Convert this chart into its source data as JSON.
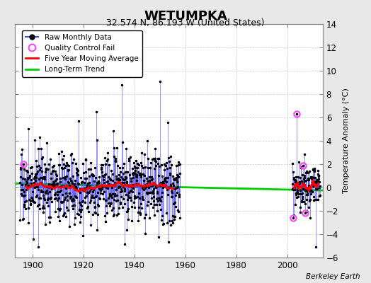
{
  "title": "WETUMPKA",
  "subtitle": "32.574 N, 86.193 W (United States)",
  "ylabel_right": "Temperature Anomaly (°C)",
  "credit": "Berkeley Earth",
  "xlim": [
    1893,
    2014
  ],
  "ylim": [
    -6,
    14
  ],
  "yticks": [
    -6,
    -4,
    -2,
    0,
    2,
    4,
    6,
    8,
    10,
    12,
    14
  ],
  "xticks": [
    1900,
    1920,
    1940,
    1960,
    1980,
    2000
  ],
  "bg_color": "#e8e8e8",
  "plot_bg_color": "#ffffff",
  "raw_line_color": "#4444ff",
  "raw_dot_color": "#000000",
  "qc_fail_color": "#ff44ff",
  "moving_avg_color": "#ff0000",
  "trend_color": "#00cc00",
  "period1_start": 1895.0,
  "period1_end": 1958.0,
  "period2_start": 2002.0,
  "period2_end": 2013.0,
  "trend_x": [
    1893,
    2014
  ],
  "trend_y": [
    0.35,
    -0.25
  ],
  "grid_color": "#cccccc",
  "spine_color": "#888888"
}
